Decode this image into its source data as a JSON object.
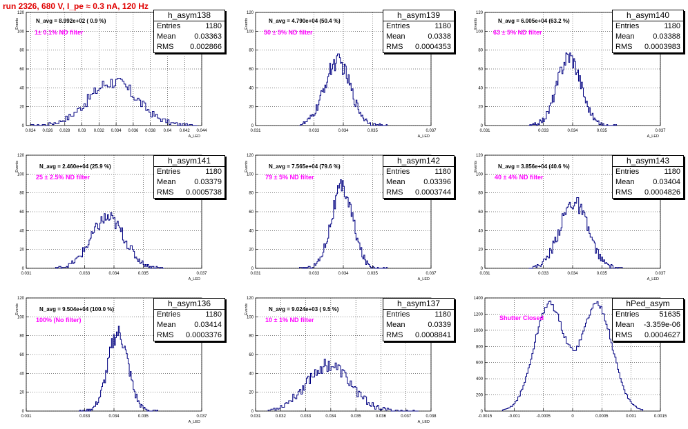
{
  "title": "run 2326,   680 V, I_pe ≈ 0.3 nA, 120 Hz",
  "stats_labels": {
    "entries": "Entries",
    "mean": "Mean",
    "rms": "RMS"
  },
  "colors": {
    "histogram": "#000080",
    "filter_text": "#ff00ff",
    "title": "#e00000"
  },
  "chart_data": [
    {
      "type": "bar",
      "name": "h_asym138",
      "navg": "N_avg = 8.992e+02 ( 0.9 %)",
      "filter": "1± 0.1% ND filter",
      "stats": {
        "entries": "1180",
        "mean": "0.03363",
        "rms": "0.002866"
      },
      "xlabel": "A_LED",
      "ylabel": "Events",
      "xlim": [
        0.0235,
        0.044
      ],
      "ylim": [
        0,
        120
      ],
      "xticks": [
        0.024,
        0.026,
        0.028,
        0.03,
        0.032,
        0.034,
        0.036,
        0.038,
        0.04,
        0.042,
        0.044
      ],
      "xtick_labels": [
        "0.024",
        "0.026",
        "0.028",
        "0.03",
        "0.032",
        "0.034",
        "0.036",
        "0.038",
        "0.04",
        "0.042",
        "0.044"
      ],
      "yticks": [
        0,
        20,
        40,
        60,
        80,
        100,
        120
      ],
      "grid": true,
      "bins": {
        "mean": 0.03363,
        "sigma": 0.00285,
        "peak": 46,
        "min": 0.024,
        "max": 0.0435,
        "n": 100
      }
    },
    {
      "type": "bar",
      "name": "h_asym139",
      "navg": "N_avg = 4.790e+04 (50.4 %)",
      "filter": "50 ± 5% ND filter",
      "stats": {
        "entries": "1180",
        "mean": "0.0338",
        "rms": "0.0004353"
      },
      "xlabel": "A_LED",
      "ylabel": "Events",
      "xlim": [
        0.031,
        0.037
      ],
      "ylim": [
        0,
        120
      ],
      "xticks": [
        0.031,
        0.033,
        0.034,
        0.035,
        0.037
      ],
      "xtick_labels": [
        "0.031",
        "0.033",
        "0.034",
        "0.035",
        "0.037"
      ],
      "yticks": [
        0,
        20,
        40,
        60,
        80,
        100,
        120
      ],
      "grid": true,
      "bins": {
        "mean": 0.0338,
        "sigma": 0.00044,
        "peak": 68,
        "min": 0.0325,
        "max": 0.0355,
        "n": 90
      }
    },
    {
      "type": "bar",
      "name": "h_asym140",
      "navg": "N_avg = 6.005e+04 (63.2 %)",
      "filter": "63 ± 5% ND filter",
      "stats": {
        "entries": "1180",
        "mean": "0.03388",
        "rms": "0.0003983"
      },
      "xlabel": "A_LED",
      "ylabel": "Events",
      "xlim": [
        0.031,
        0.037
      ],
      "ylim": [
        0,
        120
      ],
      "xticks": [
        0.031,
        0.033,
        0.034,
        0.035,
        0.037
      ],
      "xtick_labels": [
        "0.031",
        "0.033",
        "0.034",
        "0.035",
        "0.037"
      ],
      "yticks": [
        0,
        20,
        40,
        60,
        80,
        100,
        120
      ],
      "grid": true,
      "bins": {
        "mean": 0.03388,
        "sigma": 0.0004,
        "peak": 74,
        "min": 0.0325,
        "max": 0.0355,
        "n": 90
      }
    },
    {
      "type": "bar",
      "name": "h_asym141",
      "navg": "N_avg = 2.460e+04 (25.9 %)",
      "filter": "25 ± 2.5% ND filter",
      "stats": {
        "entries": "1180",
        "mean": "0.03379",
        "rms": "0.0005738"
      },
      "xlabel": "A_LED",
      "ylabel": "Events",
      "xlim": [
        0.031,
        0.037
      ],
      "ylim": [
        0,
        120
      ],
      "xticks": [
        0.031,
        0.033,
        0.034,
        0.035,
        0.037
      ],
      "xtick_labels": [
        "0.031",
        "0.033",
        "0.034",
        "0.035",
        "0.037"
      ],
      "yticks": [
        0,
        20,
        40,
        60,
        80,
        100,
        120
      ],
      "grid": true,
      "bins": {
        "mean": 0.03379,
        "sigma": 0.00057,
        "peak": 53,
        "min": 0.032,
        "max": 0.0357,
        "n": 100
      }
    },
    {
      "type": "bar",
      "name": "h_asym142",
      "navg": "N_avg = 7.565e+04 (79.6 %)",
      "filter": "79 ± 5% ND filter",
      "stats": {
        "entries": "1180",
        "mean": "0.03396",
        "rms": "0.0003744"
      },
      "xlabel": "A_LED",
      "ylabel": "Events",
      "xlim": [
        0.031,
        0.037
      ],
      "ylim": [
        0,
        120
      ],
      "xticks": [
        0.031,
        0.033,
        0.034,
        0.035,
        0.037
      ],
      "xtick_labels": [
        "0.031",
        "0.033",
        "0.034",
        "0.035",
        "0.037"
      ],
      "yticks": [
        0,
        20,
        40,
        60,
        80,
        100,
        120
      ],
      "grid": true,
      "bins": {
        "mean": 0.03396,
        "sigma": 0.00037,
        "peak": 85,
        "min": 0.0325,
        "max": 0.0355,
        "n": 90
      }
    },
    {
      "type": "bar",
      "name": "h_asym143",
      "navg": "N_avg = 3.856e+04 (40.6 %)",
      "filter": "40 ± 4% ND filter",
      "stats": {
        "entries": "1180",
        "mean": "0.03404",
        "rms": "0.0004826"
      },
      "xlabel": "A_LED",
      "ylabel": "Events",
      "xlim": [
        0.031,
        0.037
      ],
      "ylim": [
        0,
        120
      ],
      "xticks": [
        0.031,
        0.033,
        0.034,
        0.035,
        0.037
      ],
      "xtick_labels": [
        "0.031",
        "0.033",
        "0.034",
        "0.035",
        "0.037"
      ],
      "yticks": [
        0,
        20,
        40,
        60,
        80,
        100,
        120
      ],
      "grid": true,
      "bins": {
        "mean": 0.03404,
        "sigma": 0.00048,
        "peak": 70,
        "min": 0.0325,
        "max": 0.0357,
        "n": 90
      }
    },
    {
      "type": "bar",
      "name": "h_asym136",
      "navg": "N_avg = 9.504e+04 (100.0 %)",
      "filter": "100% (No filter)",
      "stats": {
        "entries": "1180",
        "mean": "0.03414",
        "rms": "0.0003376"
      },
      "xlabel": "A_LED",
      "ylabel": "Events",
      "xlim": [
        0.031,
        0.037
      ],
      "ylim": [
        0,
        120
      ],
      "xticks": [
        0.031,
        0.033,
        0.034,
        0.035,
        0.037
      ],
      "xtick_labels": [
        "0.031",
        "0.033",
        "0.034",
        "0.035",
        "0.037"
      ],
      "yticks": [
        0,
        20,
        40,
        60,
        80,
        100,
        120
      ],
      "grid": true,
      "bins": {
        "mean": 0.03414,
        "sigma": 0.00034,
        "peak": 83,
        "min": 0.0328,
        "max": 0.0355,
        "n": 80
      }
    },
    {
      "type": "bar",
      "name": "h_asym137",
      "navg": "N_avg = 9.024e+03 ( 9.5 %)",
      "filter": "10 ± 1% ND filter",
      "stats": {
        "entries": "1180",
        "mean": "0.0339",
        "rms": "0.0008841"
      },
      "xlabel": "A_LED",
      "ylabel": "Events",
      "xlim": [
        0.031,
        0.038
      ],
      "ylim": [
        0,
        120
      ],
      "xticks": [
        0.031,
        0.032,
        0.033,
        0.034,
        0.035,
        0.036,
        0.037,
        0.038
      ],
      "xtick_labels": [
        "0.031",
        "0.032",
        "0.033",
        "0.034",
        "0.035",
        "0.036",
        "0.037",
        "0.038"
      ],
      "yticks": [
        0,
        20,
        40,
        60,
        80,
        100,
        120
      ],
      "grid": true,
      "bins": {
        "mean": 0.0339,
        "sigma": 0.00088,
        "peak": 49,
        "min": 0.0315,
        "max": 0.0375,
        "n": 110
      }
    },
    {
      "type": "bar",
      "name": "hPed_asym",
      "navg": "",
      "filter": "Shutter Closed",
      "stats": {
        "entries": "51635",
        "mean": "-3.359e-06",
        "rms": "0.0004627"
      },
      "xlabel": "",
      "ylabel": "",
      "xlim": [
        -0.0015,
        0.0015
      ],
      "ylim": [
        0,
        1400
      ],
      "xticks": [
        -0.0015,
        -0.001,
        -0.0005,
        0,
        0.0005,
        0.001,
        0.0015
      ],
      "xtick_labels": [
        "-0.0015",
        "-0.001",
        "-0.0005",
        "0",
        "0.0005",
        "0.001",
        "0.0015"
      ],
      "yticks": [
        0,
        200,
        400,
        600,
        800,
        1000,
        1200,
        1400
      ],
      "grid": true,
      "bins": {
        "bimodal": true,
        "peaks": [
          -0.0004,
          0.00042
        ],
        "sigma": 0.00026,
        "peak": 1390,
        "min": -0.0012,
        "max": 0.0012,
        "n": 110
      }
    }
  ]
}
